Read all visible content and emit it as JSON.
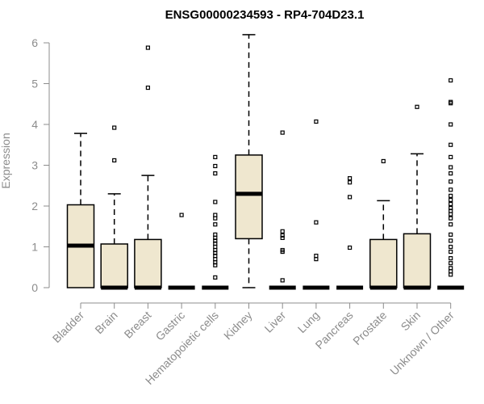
{
  "chart_data": {
    "type": "box",
    "title": "ENSG00000234593 - RP4-704D23.1",
    "ylabel": "Expression",
    "xlabel": "",
    "ylim": [
      0,
      6.3
    ],
    "yticks": [
      0,
      1,
      2,
      3,
      4,
      5,
      6
    ],
    "grid": false,
    "categories": [
      "Bladder",
      "Brain",
      "Breast",
      "Gastric",
      "Hematopoietic cells",
      "Kidney",
      "Liver",
      "Lung",
      "Pancreas",
      "Prostate",
      "Skin",
      "Unknown / Other"
    ],
    "boxes": [
      {
        "min": 0,
        "q1": 0,
        "median": 1.03,
        "q3": 2.03,
        "max": 3.78,
        "outliers": []
      },
      {
        "min": 0,
        "q1": 0,
        "median": 0,
        "q3": 1.07,
        "max": 2.3,
        "outliers": [
          3.12,
          3.92
        ]
      },
      {
        "min": 0,
        "q1": 0,
        "median": 0,
        "q3": 1.18,
        "max": 2.75,
        "outliers": [
          4.9,
          5.88
        ]
      },
      {
        "min": 0,
        "q1": 0,
        "median": 0,
        "q3": 0,
        "max": 0,
        "outliers": [
          1.78
        ]
      },
      {
        "min": 0,
        "q1": 0,
        "median": 0,
        "q3": 0,
        "max": 0,
        "outliers": [
          0.25,
          0.55,
          0.62,
          0.7,
          0.78,
          0.85,
          0.92,
          1.0,
          1.08,
          1.15,
          1.22,
          1.3,
          1.55,
          1.7,
          1.78,
          2.1,
          2.8,
          2.98,
          3.2
        ]
      },
      {
        "min": 0,
        "q1": 1.2,
        "median": 2.3,
        "q3": 3.25,
        "max": 6.2,
        "outliers": []
      },
      {
        "min": 0,
        "q1": 0,
        "median": 0,
        "q3": 0,
        "max": 0,
        "outliers": [
          0.18,
          0.88,
          0.92,
          1.22,
          1.28,
          1.38,
          3.8
        ]
      },
      {
        "min": 0,
        "q1": 0,
        "median": 0,
        "q3": 0,
        "max": 0,
        "outliers": [
          0.7,
          0.78,
          1.6,
          4.07
        ]
      },
      {
        "min": 0,
        "q1": 0,
        "median": 0,
        "q3": 0,
        "max": 0,
        "outliers": [
          0.98,
          2.22,
          2.58,
          2.68
        ]
      },
      {
        "min": 0,
        "q1": 0,
        "median": 0,
        "q3": 1.18,
        "max": 2.13,
        "outliers": [
          3.1
        ]
      },
      {
        "min": 0,
        "q1": 0,
        "median": 0,
        "q3": 1.32,
        "max": 3.28,
        "outliers": [
          4.43
        ]
      },
      {
        "min": 0,
        "q1": 0,
        "median": 0,
        "q3": 0,
        "max": 0,
        "outliers": [
          0.32,
          0.4,
          0.48,
          0.6,
          0.72,
          0.88,
          1.0,
          1.15,
          1.3,
          1.55,
          1.7,
          1.8,
          1.88,
          1.95,
          2.05,
          2.15,
          2.25,
          2.4,
          2.6,
          2.8,
          2.95,
          3.2,
          3.5,
          4.0,
          4.52,
          4.55,
          5.08
        ]
      }
    ]
  }
}
